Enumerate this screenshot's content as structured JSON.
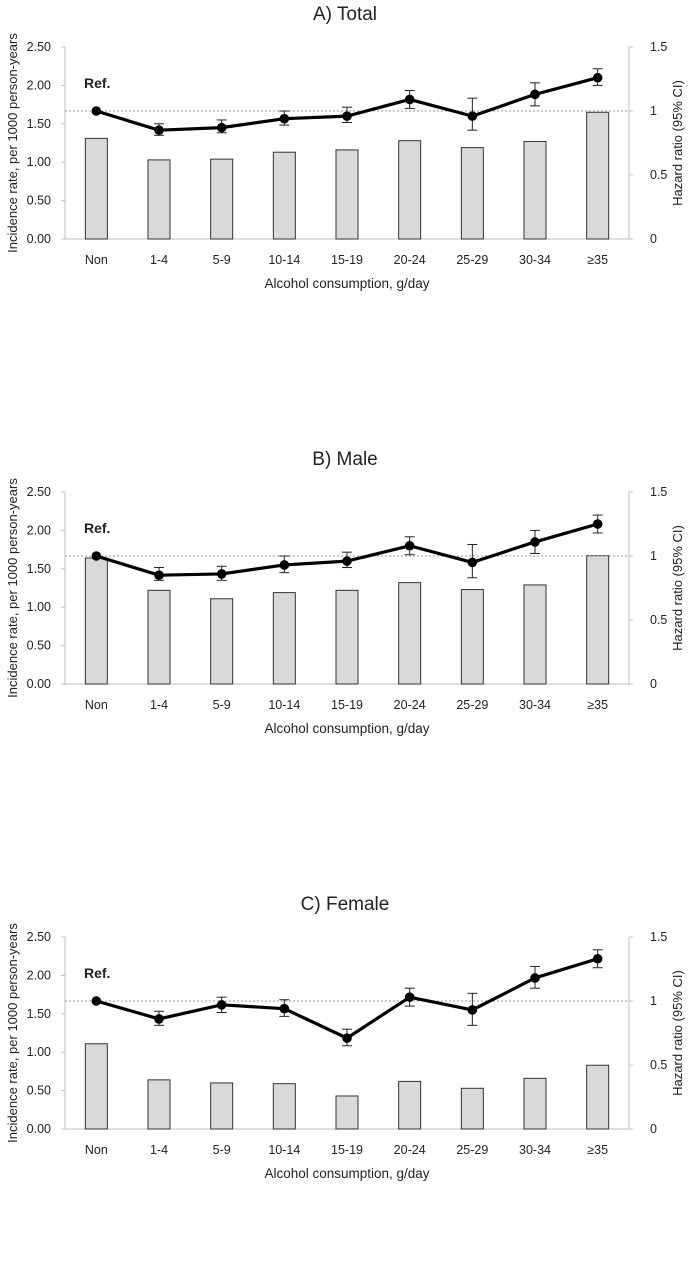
{
  "chart_data": [
    {
      "type": "bar",
      "title": "A) Total",
      "xlabel": "Alcohol consumption, g/day",
      "ylabel": "Incidence rate, per 1000 person-years",
      "y2label": "Hazard ratio (95% CI)",
      "categories": [
        "Non",
        "1-4",
        "5-9",
        "10-14",
        "15-19",
        "20-24",
        "25-29",
        "30-34",
        "≥35"
      ],
      "ylim": [
        0,
        2.5
      ],
      "yticks": [
        "0.00",
        "0.50",
        "1.00",
        "1.50",
        "2.00",
        "2.50"
      ],
      "y2lim": [
        0,
        1.5
      ],
      "y2ticks": [
        "0",
        "0.5",
        "1",
        "1.5"
      ],
      "bars": [
        1.31,
        1.03,
        1.04,
        1.13,
        1.16,
        1.28,
        1.19,
        1.27,
        1.65
      ],
      "hr": [
        1.0,
        0.85,
        0.87,
        0.94,
        0.96,
        1.09,
        0.96,
        1.13,
        1.26
      ],
      "hr_lower": [
        1.0,
        0.81,
        0.83,
        0.89,
        0.91,
        1.02,
        0.85,
        1.04,
        1.2
      ],
      "hr_upper": [
        1.0,
        0.9,
        0.93,
        1.0,
        1.03,
        1.16,
        1.1,
        1.22,
        1.33
      ],
      "ref_line": 1.0,
      "ref_label": "Ref."
    },
    {
      "type": "bar",
      "title": "B) Male",
      "xlabel": "Alcohol consumption, g/day",
      "ylabel": "Incidence rate, per 1000 person-years",
      "y2label": "Hazard ratio (95% CI)",
      "categories": [
        "Non",
        "1-4",
        "5-9",
        "10-14",
        "15-19",
        "20-24",
        "25-29",
        "30-34",
        "≥35"
      ],
      "ylim": [
        0,
        2.5
      ],
      "yticks": [
        "0.00",
        "0.50",
        "1.00",
        "1.50",
        "2.00",
        "2.50"
      ],
      "y2lim": [
        0,
        1.5
      ],
      "y2ticks": [
        "0",
        "0.5",
        "1",
        "1.5"
      ],
      "bars": [
        1.64,
        1.22,
        1.11,
        1.19,
        1.22,
        1.32,
        1.23,
        1.29,
        1.67
      ],
      "hr": [
        1.0,
        0.85,
        0.86,
        0.93,
        0.96,
        1.08,
        0.95,
        1.11,
        1.25
      ],
      "hr_lower": [
        1.0,
        0.81,
        0.81,
        0.87,
        0.91,
        1.01,
        0.83,
        1.02,
        1.18
      ],
      "hr_upper": [
        1.0,
        0.91,
        0.92,
        1.0,
        1.03,
        1.15,
        1.09,
        1.2,
        1.32
      ],
      "ref_line": 1.0,
      "ref_label": "Ref."
    },
    {
      "type": "bar",
      "title": "C) Female",
      "xlabel": "Alcohol consumption, g/day",
      "ylabel": "Incidence rate, per 1000 person-years",
      "y2label": "Hazard ratio (95% CI)",
      "categories": [
        "Non",
        "1-4",
        "5-9",
        "10-14",
        "15-19",
        "20-24",
        "25-29",
        "30-34",
        "≥35"
      ],
      "ylim": [
        0,
        2.5
      ],
      "yticks": [
        "0.00",
        "0.50",
        "1.00",
        "1.50",
        "2.00",
        "2.50"
      ],
      "y2lim": [
        0,
        1.5
      ],
      "y2ticks": [
        "0",
        "0.5",
        "1",
        "1.5"
      ],
      "bars": [
        1.11,
        0.64,
        0.6,
        0.59,
        0.43,
        0.62,
        0.53,
        0.66,
        0.83
      ],
      "hr": [
        1.0,
        0.86,
        0.97,
        0.94,
        0.71,
        1.03,
        0.93,
        1.18,
        1.33
      ],
      "hr_lower": [
        1.0,
        0.81,
        0.91,
        0.88,
        0.65,
        0.96,
        0.81,
        1.1,
        1.26
      ],
      "hr_upper": [
        1.0,
        0.92,
        1.03,
        1.01,
        0.78,
        1.1,
        1.06,
        1.27,
        1.4
      ],
      "ref_line": 1.0,
      "ref_label": "Ref."
    }
  ]
}
